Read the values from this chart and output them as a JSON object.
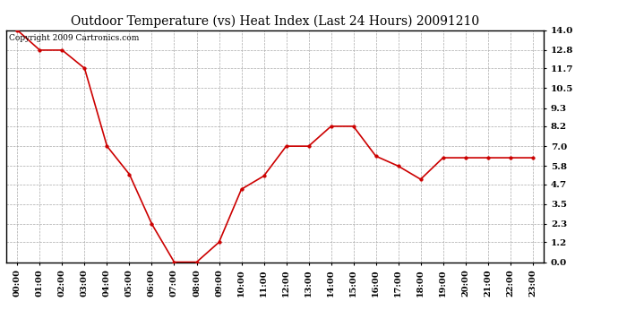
{
  "title": "Outdoor Temperature (vs) Heat Index (Last 24 Hours) 20091210",
  "copyright": "Copyright 2009 Cartronics.com",
  "x_labels": [
    "00:00",
    "01:00",
    "02:00",
    "03:00",
    "04:00",
    "05:00",
    "06:00",
    "07:00",
    "08:00",
    "09:00",
    "10:00",
    "11:00",
    "12:00",
    "13:00",
    "14:00",
    "15:00",
    "16:00",
    "17:00",
    "18:00",
    "19:00",
    "20:00",
    "21:00",
    "22:00",
    "23:00"
  ],
  "y_values": [
    14.0,
    12.8,
    12.8,
    11.7,
    7.0,
    5.3,
    2.3,
    0.0,
    0.0,
    1.2,
    4.4,
    5.2,
    7.0,
    7.0,
    8.2,
    8.2,
    6.4,
    5.8,
    5.0,
    6.3,
    6.3,
    6.3,
    6.3,
    6.3
  ],
  "y_ticks": [
    0.0,
    1.2,
    2.3,
    3.5,
    4.7,
    5.8,
    7.0,
    8.2,
    9.3,
    10.5,
    11.7,
    12.8,
    14.0
  ],
  "ylim": [
    0.0,
    14.0
  ],
  "line_color": "#cc0000",
  "marker": "o",
  "marker_size": 2.5,
  "grid_color": "#aaaaaa",
  "background_color": "#ffffff",
  "title_fontsize": 10,
  "copyright_fontsize": 6.5,
  "tick_fontsize": 7,
  "y_tick_fontsize": 7.5
}
